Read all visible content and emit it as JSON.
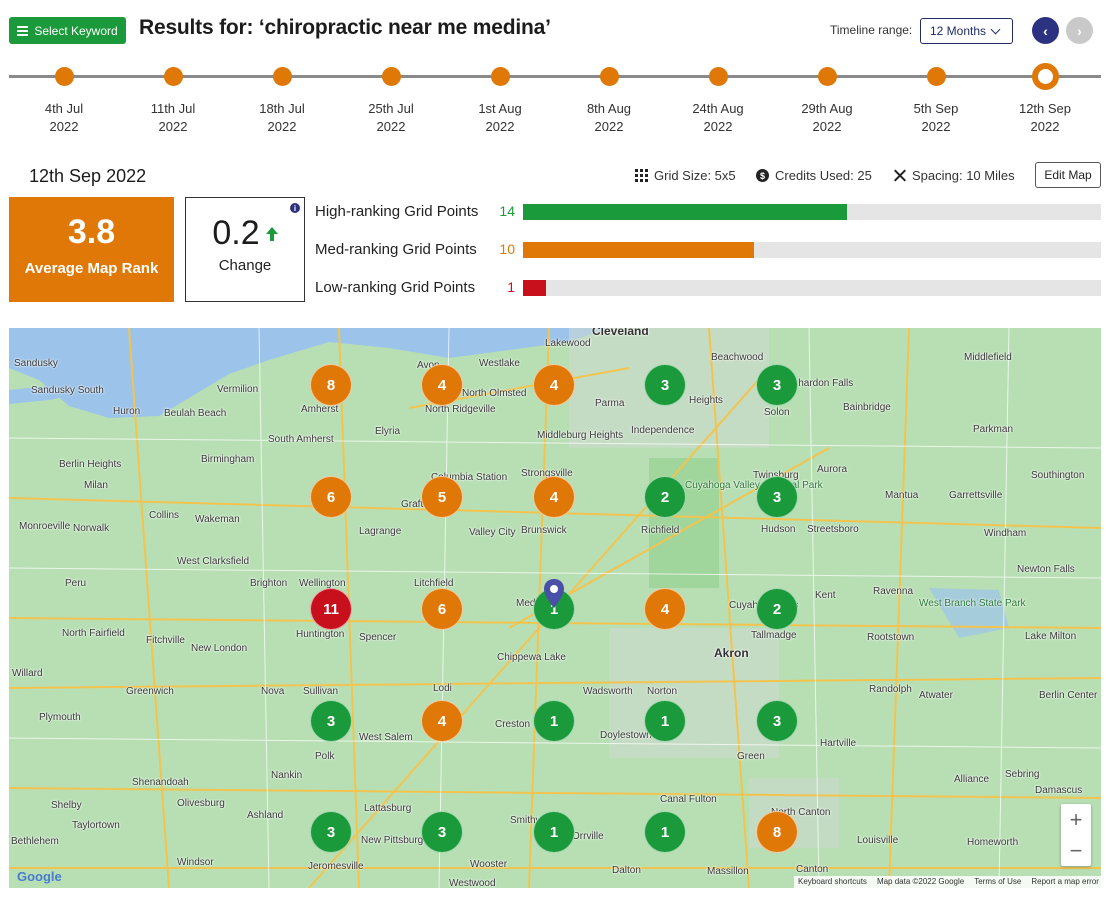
{
  "header": {
    "select_keyword": "Select Keyword",
    "title": "Results for: ‘chiropractic near me medina’",
    "timeline_label": "Timeline range:",
    "timeline_value": "12 Months",
    "prev_icon": "chevron-left-icon",
    "next_icon": "chevron-right-icon"
  },
  "timeline": [
    {
      "day": "4th Jul",
      "year": "2022"
    },
    {
      "day": "11th Jul",
      "year": "2022"
    },
    {
      "day": "18th Jul",
      "year": "2022"
    },
    {
      "day": "25th Jul",
      "year": "2022"
    },
    {
      "day": "1st Aug",
      "year": "2022"
    },
    {
      "day": "8th Aug",
      "year": "2022"
    },
    {
      "day": "24th Aug",
      "year": "2022"
    },
    {
      "day": "29th Aug",
      "year": "2022"
    },
    {
      "day": "5th Sep",
      "year": "2022"
    },
    {
      "day": "12th Sep",
      "year": "2022"
    }
  ],
  "summary": {
    "selected_date": "12th Sep 2022",
    "grid_size": "Grid Size: 5x5",
    "credits": "Credits Used: 25",
    "spacing": "Spacing: 10 Miles",
    "edit_map": "Edit Map",
    "avg_value": "3.8",
    "avg_label": "Average Map Rank",
    "change_value": "0.2",
    "change_label": "Change",
    "info_icon": "i",
    "bars": [
      {
        "label": "High-ranking Grid Points",
        "count": "14",
        "total": 25,
        "color": "#1a9a3a"
      },
      {
        "label": "Med-ranking Grid Points",
        "count": "10",
        "total": 25,
        "color": "#e07808"
      },
      {
        "label": "Low-ranking Grid Points",
        "count": "1",
        "total": 25,
        "color": "#c8101c"
      }
    ]
  },
  "colors": {
    "high": "#1a9a3a",
    "med": "#e07808",
    "low": "#c8101c",
    "accent": "#2d3280"
  },
  "map": {
    "grid": [
      [
        "8",
        "4",
        "4",
        "3",
        "3"
      ],
      [
        "6",
        "5",
        "4",
        "2",
        "3"
      ],
      [
        "11",
        "6",
        "1",
        "4",
        "2"
      ],
      [
        "3",
        "4",
        "1",
        "1",
        "3"
      ],
      [
        "3",
        "3",
        "1",
        "1",
        "8"
      ]
    ],
    "places": [
      "Cleveland",
      "Lakewood",
      "Beachwood",
      "Middlefield",
      "Sandusky",
      "Vermilion",
      "Avon",
      "Westlake",
      "North Olmsted",
      "Parma",
      "Heights",
      "Chardon Falls",
      "Sandusky South",
      "Huron",
      "Beulah Beach",
      "Amherst",
      "Elyria",
      "North Ridgeville",
      "Middleburg Heights",
      "Independence",
      "Solon",
      "Bainbridge",
      "South Amherst",
      "Parkman",
      "Berlin Heights",
      "Birmingham",
      "Strongsville",
      "Twinsburg",
      "Aurora",
      "Milan",
      "Collins",
      "Wakeman",
      "Grafton",
      "Columbia Station",
      "Valley City",
      "Brunswick",
      "Richfield",
      "Hudson",
      "Mantua",
      "Garrettsville",
      "Southington",
      "Monroeville",
      "Norwalk",
      "Lagrange",
      "Streetsboro",
      "Windham",
      "West Clarksfield",
      "Brighton",
      "Wellington",
      "Litchfield",
      "Medina",
      "Wadsworth",
      "Kent",
      "Ravenna",
      "Newton Falls",
      "Peru",
      "Huntington",
      "Spencer",
      "Cuyahoga Falls",
      "Tallmadge",
      "Rootstown",
      "Lake Milton",
      "North Fairfield",
      "Fitchville",
      "New London",
      "Chippewa Lake",
      "Akron",
      "Willard",
      "Greenwich",
      "Nova",
      "Sullivan",
      "Lodi",
      "Norton",
      "Randolph",
      "Atwater",
      "Berlin Center",
      "Plymouth",
      "West Salem",
      "Creston",
      "Doylestown",
      "Hartville",
      "Polk",
      "Nankin",
      "Green",
      "Alliance",
      "Sebring",
      "Shenandoah",
      "Olivesburg",
      "Lattasburg",
      "Canal Fulton",
      "North Canton",
      "Shelby",
      "Taylortown",
      "Ashland",
      "Damascus",
      "New Pittsburg",
      "Smithville",
      "Orrville",
      "Massillon",
      "Canton",
      "Louisville",
      "Homeworth",
      "Bethlehem",
      "Windsor",
      "Jeromesville",
      "Wooster",
      "Dalton",
      "Westwood",
      "Cuyahoga Valley National Park",
      "West Branch State Park"
    ],
    "zoom_in": "+",
    "zoom_out": "−",
    "google": "Google",
    "attribution": [
      "Keyboard shortcuts",
      "Map data ©2022 Google",
      "Terms of Use",
      "Report a map error"
    ]
  }
}
